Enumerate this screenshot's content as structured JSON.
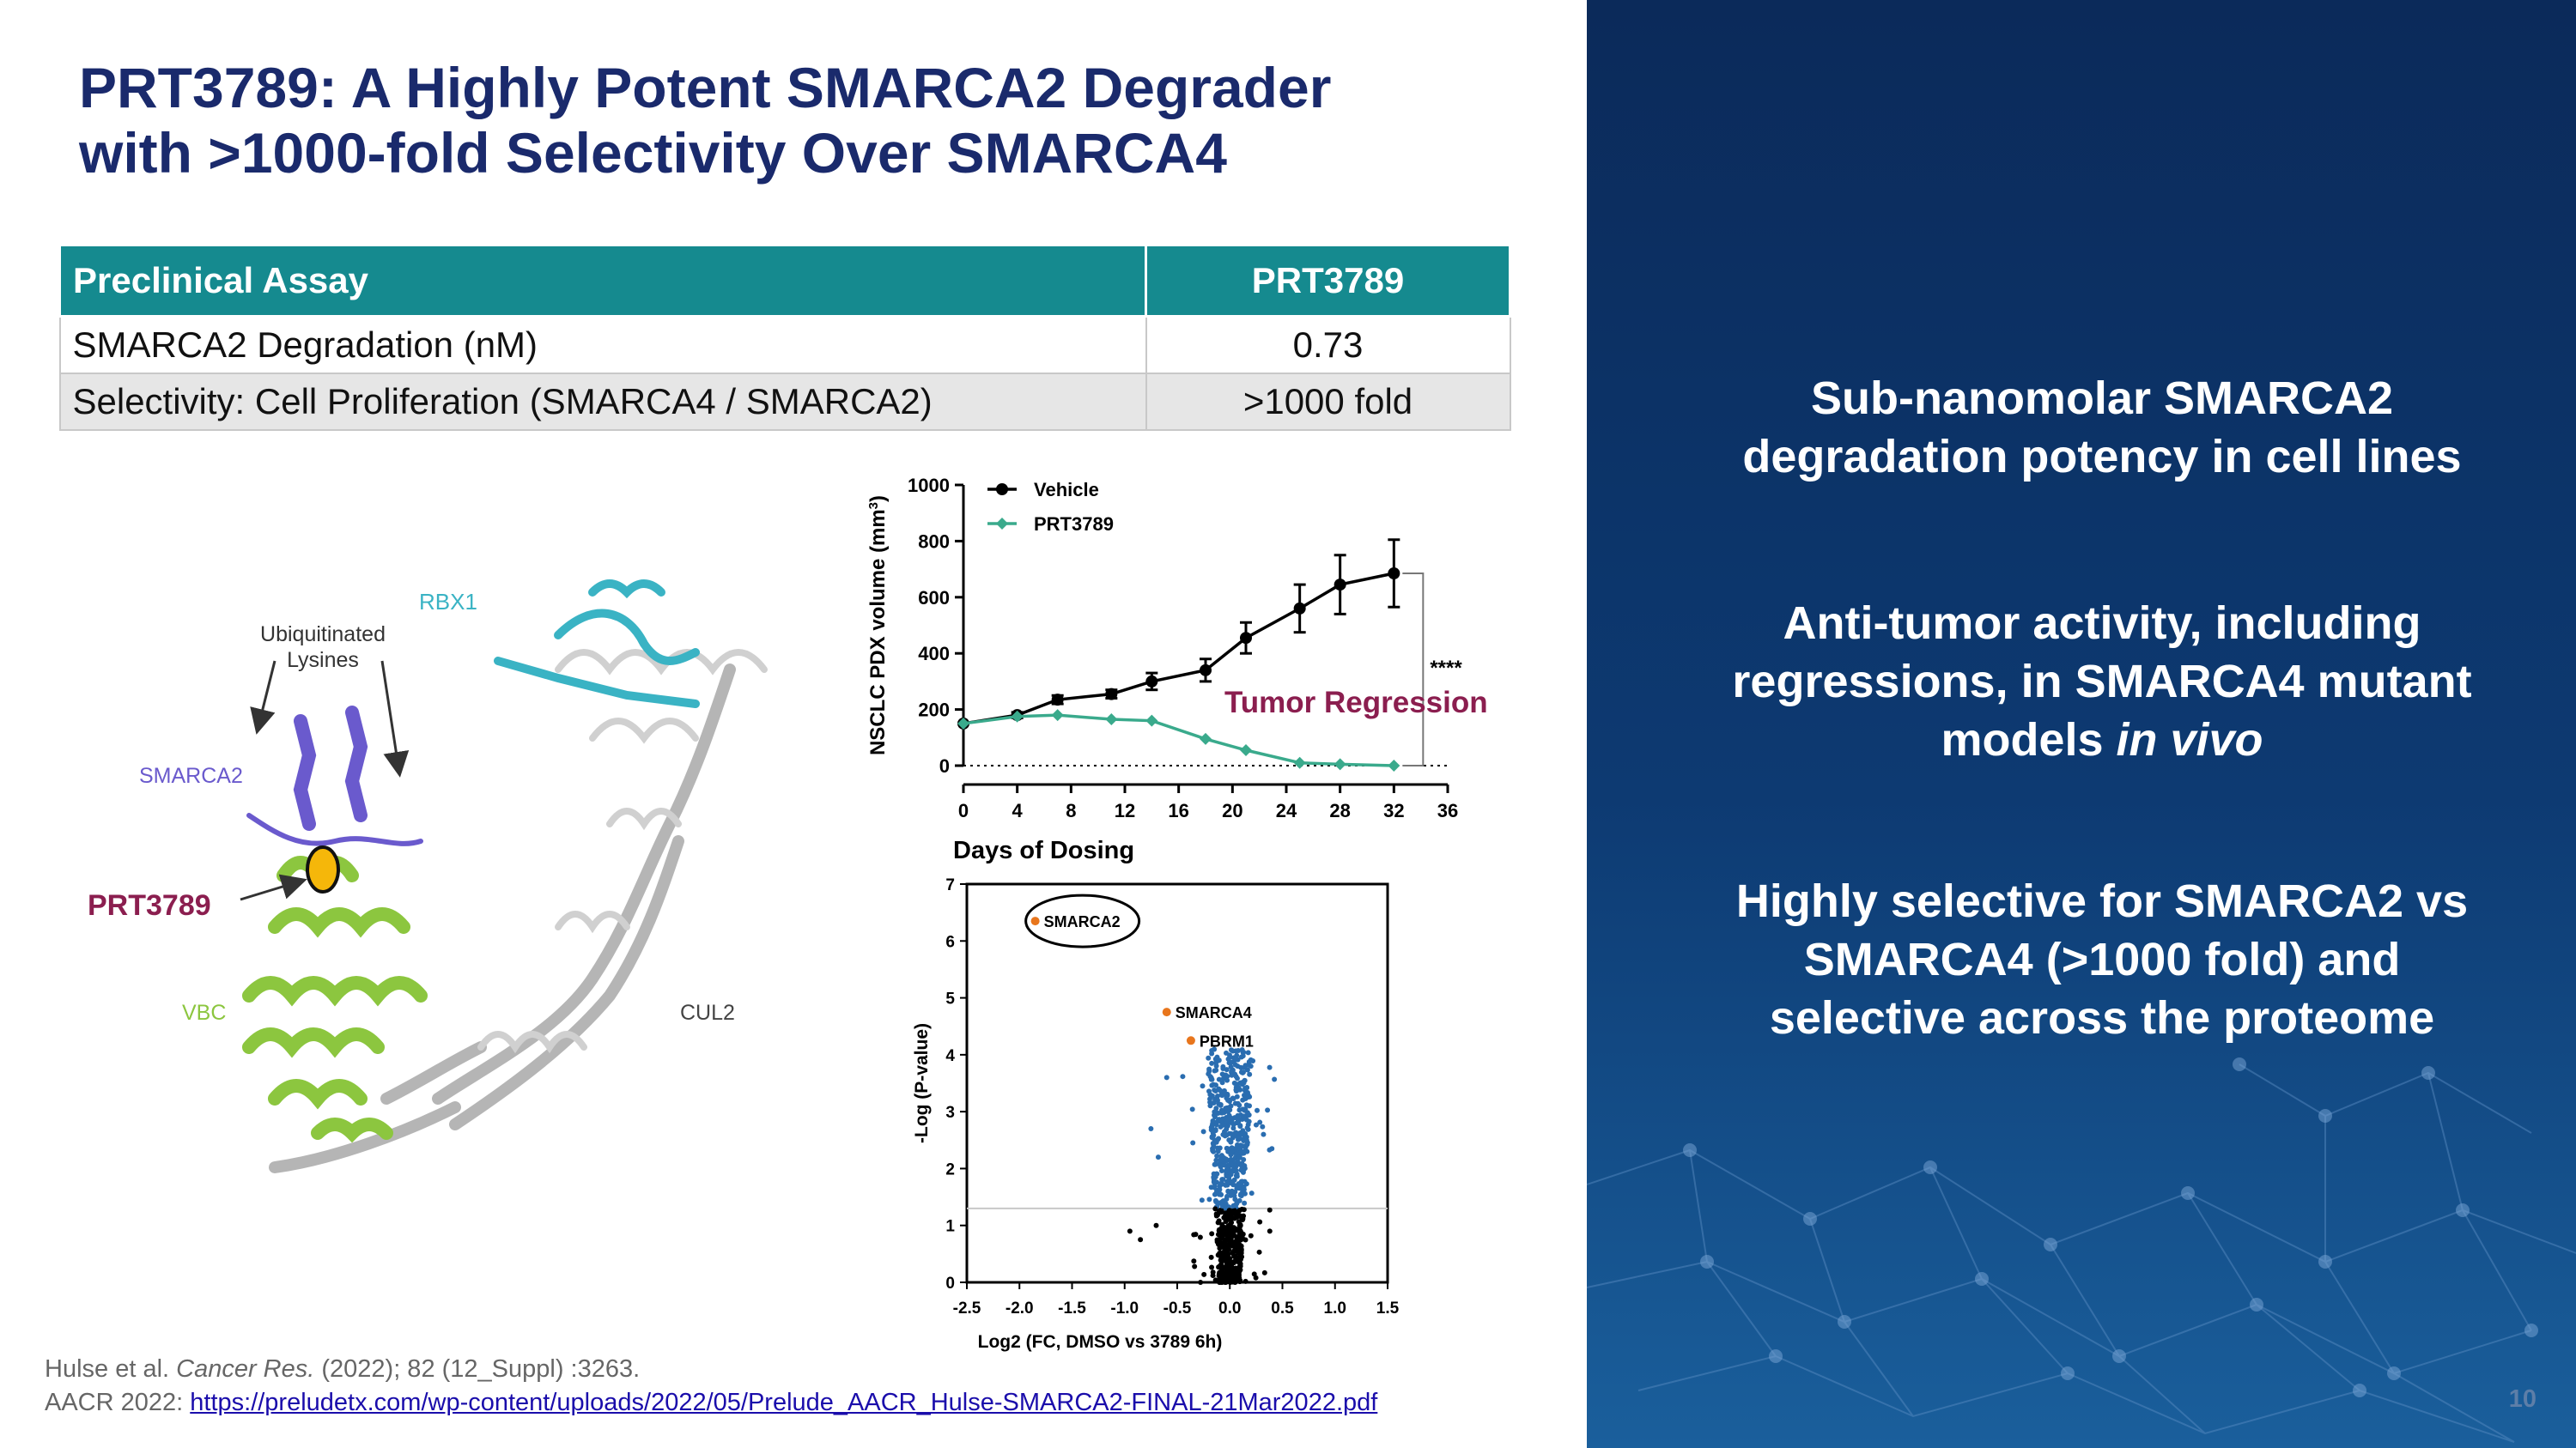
{
  "slide": {
    "title_line1": "PRT3789: A Highly Potent SMARCA2 Degrader",
    "title_line2": "with >1000-fold Selectivity Over SMARCA4",
    "page_number": "10"
  },
  "table": {
    "headers": [
      "Preclinical Assay",
      "PRT3789"
    ],
    "rows": [
      [
        "SMARCA2 Degradation (nM)",
        "0.73"
      ],
      [
        "Selectivity: Cell Proliferation (SMARCA4 / SMARCA2)",
        ">1000 fold"
      ]
    ]
  },
  "structure": {
    "labels": {
      "rbx1": "RBX1",
      "ubiq_line1": "Ubiquitinated",
      "ubiq_line2": "Lysines",
      "smarca2": "SMARCA2",
      "prt3789": "PRT3789",
      "vbc": "VBC",
      "cul2": "CUL2"
    }
  },
  "chart_data": [
    {
      "type": "line",
      "xlabel": "Days of Dosing",
      "ylabel": "NSCLC PDX volume (mm",
      "ylabel_sup": "3",
      "ylabel_close": ")",
      "xlim": [
        0,
        36
      ],
      "ylim": [
        0,
        1000
      ],
      "xticks": [
        0,
        4,
        8,
        12,
        16,
        20,
        24,
        28,
        32,
        36
      ],
      "yticks": [
        0,
        200,
        400,
        600,
        800,
        1000
      ],
      "annotation": "Tumor Regression",
      "significance": "****",
      "series": [
        {
          "name": "Vehicle",
          "color": "#000000",
          "x": [
            0,
            4,
            7,
            11,
            14,
            18,
            21,
            25,
            28,
            32
          ],
          "y": [
            150,
            180,
            235,
            255,
            300,
            340,
            455,
            560,
            645,
            685
          ],
          "err": [
            0,
            10,
            15,
            15,
            30,
            40,
            55,
            85,
            105,
            120
          ]
        },
        {
          "name": "PRT3789",
          "color": "#3aaa8c",
          "x": [
            0,
            4,
            7,
            11,
            14,
            18,
            21,
            25,
            28,
            32
          ],
          "y": [
            150,
            175,
            180,
            165,
            160,
            95,
            55,
            10,
            5,
            0
          ],
          "err": [
            0,
            0,
            0,
            0,
            0,
            0,
            0,
            0,
            0,
            0
          ]
        }
      ]
    },
    {
      "type": "scatter",
      "xlabel": "Log2 (FC, DMSO vs 3789 6h)",
      "ylabel": "-Log (P-value)",
      "xlim": [
        -2.5,
        1.5
      ],
      "ylim": [
        0,
        7
      ],
      "xticks": [
        "-2.5",
        "-2.0",
        "-1.5",
        "-1.0",
        "-0.5",
        "0.0",
        "0.5",
        "1.0",
        "1.5"
      ],
      "yticks": [
        "0",
        "1",
        "2",
        "3",
        "4",
        "5",
        "6",
        "7"
      ],
      "threshold": 1.3,
      "highlighted": [
        {
          "label": "SMARCA2",
          "x": -1.85,
          "y": 6.35,
          "color": "#e8761d"
        },
        {
          "label": "SMARCA4",
          "x": -0.6,
          "y": 4.75,
          "color": "#e8761d"
        },
        {
          "label": "PBRM1",
          "x": -0.37,
          "y": 4.25,
          "color": "#e8761d"
        }
      ],
      "colors": {
        "significant": "#2a6db0",
        "not_significant": "#000000"
      }
    }
  ],
  "bullets": {
    "b1_line1": "Sub-nanomolar SMARCA2",
    "b1_line2": "degradation potency in cell lines",
    "b2_line1": "Anti-tumor activity, including",
    "b2_line2": "regressions, in SMARCA4 mutant",
    "b2_line3a": "models ",
    "b2_line3b": "in vivo",
    "b3_line1": "Highly selective for SMARCA2 vs",
    "b3_line2": "SMARCA4 (>1000 fold) and",
    "b3_line3": "selective across the proteome"
  },
  "citation": {
    "line1_a": "Hulse et al. ",
    "line1_b": "Cancer Res.",
    "line1_c": " (2022); 82 (12_Suppl) :3263.",
    "line2_prefix": "AACR 2022: ",
    "line2_link": "https://preludetx.com/wp-content/uploads/2022/05/Prelude_AACR_Hulse-SMARCA2-FINAL-21Mar2022.pdf"
  }
}
